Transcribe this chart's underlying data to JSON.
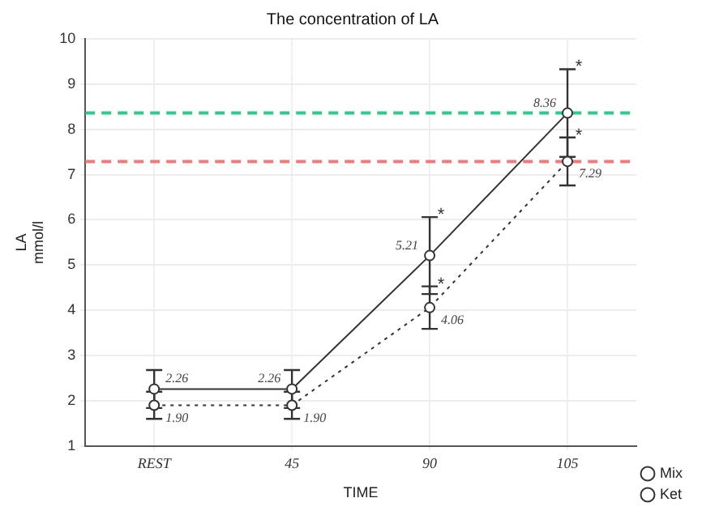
{
  "chart_data": {
    "type": "line",
    "title": "The concentration of LA",
    "xlabel": "TIME",
    "ylabel": "LA\nmmol/l",
    "categories": [
      "REST",
      "45",
      "90",
      "105"
    ],
    "series": [
      {
        "name": "Mix",
        "color": "#333333",
        "values": [
          2.26,
          2.26,
          5.21,
          8.36
        ],
        "errors": [
          0.42,
          0.42,
          0.85,
          0.97
        ],
        "value_labels": [
          "2.26",
          "2.26",
          "5.21",
          "8.36"
        ],
        "line_style": "solid"
      },
      {
        "name": "Ket",
        "color": "#333333",
        "values": [
          1.9,
          1.9,
          4.06,
          7.29
        ],
        "errors": [
          0.3,
          0.3,
          0.47,
          0.53
        ],
        "value_labels": [
          "1.90",
          "1.90",
          "4.06",
          "7.29"
        ],
        "line_style": "dotted"
      }
    ],
    "ylim": [
      1,
      10
    ],
    "yticks": [
      1,
      2,
      3,
      4,
      5,
      6,
      7,
      8,
      9,
      10
    ],
    "ref_lines": [
      {
        "axis": "y",
        "value": 8.36,
        "color": "#2fc98a",
        "line_style": "dashed"
      },
      {
        "axis": "y",
        "value": 7.29,
        "color": "#f07a78",
        "line_style": "dashed"
      }
    ],
    "annotations": [
      {
        "text": "*",
        "x": "90",
        "y": 6.06
      },
      {
        "text": "*",
        "x": "105",
        "y": 9.33
      },
      {
        "text": "*",
        "x": "90",
        "y": 4.53
      },
      {
        "text": "*",
        "x": "105",
        "y": 7.82
      }
    ],
    "marker": "circle",
    "grid": true,
    "legend": "bottom right"
  }
}
